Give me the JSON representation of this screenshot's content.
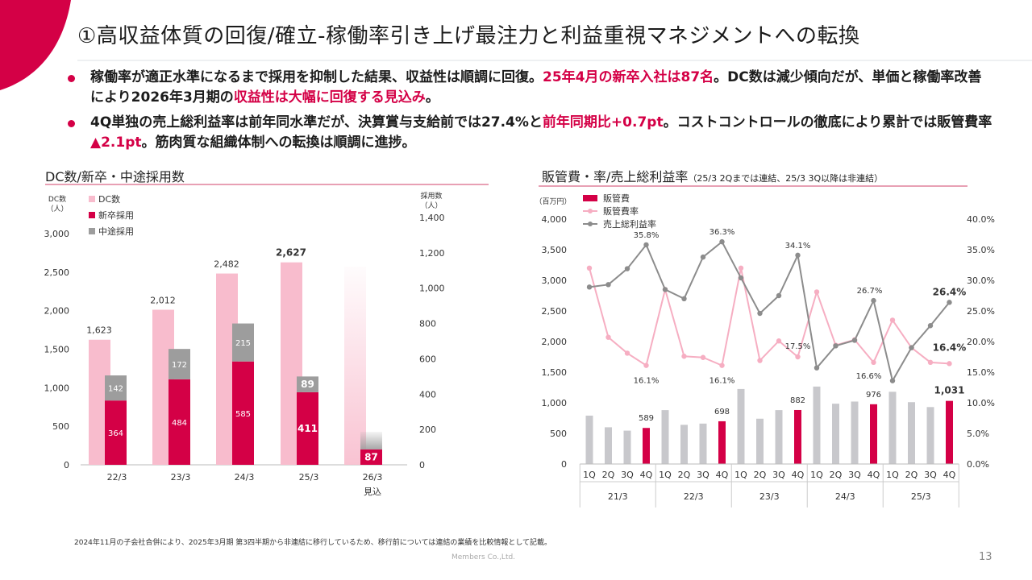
{
  "colors": {
    "accent": "#d40046",
    "dc_bar": "#f8bccd",
    "mid_bar": "#9d9d9d",
    "sga_bar_highlight": "#d40046",
    "sga_bar": "#c8c8cc",
    "sga_rate_line": "#f6aec2",
    "gross_margin_line": "#8c8c8c"
  },
  "header": {
    "title": "①高収益体質の回復/確立-稼働率引き上げ最注力と利益重視マネジメントへの転換"
  },
  "bullets": [
    {
      "parts": [
        {
          "text": "稼働率が適正水準になるまで採用を抑制した結果、収益性は順調に回復。",
          "hl": false
        },
        {
          "text": "25年4月の新卒入社は87名",
          "hl": true
        },
        {
          "text": "。DC数は減少傾向だが、単価と稼働率改善により2026年3月期の",
          "hl": false
        },
        {
          "text": "収益性は大幅に回復する見込み",
          "hl": true
        },
        {
          "text": "。",
          "hl": false
        }
      ]
    },
    {
      "parts": [
        {
          "text": "4Q単独の売上総利益率は前年同水準だが、決算賞与支給前では27.4%と",
          "hl": false
        },
        {
          "text": "前年同期比+0.7pt",
          "hl": true
        },
        {
          "text": "。コストコントロールの徹底により累計では販管費率",
          "hl": false
        },
        {
          "text": "▲2.1pt",
          "hl": true
        },
        {
          "text": "。筋肉質な組織体制への転換は順調に進捗。",
          "hl": false
        }
      ]
    }
  ],
  "left_section_title": "DC数/新卒・中途採用数",
  "right_section_title": {
    "main": "販管費・率/売上総利益率",
    "sub": "（25/3 2Qまでは連結、25/3 3Q以降は非連結）"
  },
  "chart_data": [
    {
      "type": "bar",
      "categories": [
        "22/3",
        "23/3",
        "24/3",
        "25/3",
        "26/3"
      ],
      "category_note": {
        "26/3": "見込"
      },
      "left_axis_label": [
        "DC数",
        "（人）"
      ],
      "right_axis_label": [
        "採用数",
        "（人）"
      ],
      "left_ticks": [
        "0",
        "500",
        "1,000",
        "1,500",
        "2,000",
        "2,500",
        "3,000"
      ],
      "right_ticks": [
        "0",
        "200",
        "400",
        "600",
        "800",
        "1,000",
        "1,200",
        "1,400"
      ],
      "ylim_left": [
        0,
        3000
      ],
      "ylim_right": [
        0,
        1400
      ],
      "series": [
        {
          "name": "DC数",
          "axis": "left",
          "values": [
            1623,
            2012,
            2482,
            2627,
            2570
          ],
          "labels": [
            "1,623",
            "2,012",
            "2,482",
            "2,627",
            ""
          ]
        },
        {
          "name": "新卒採用",
          "axis": "right",
          "stacked": true,
          "values": [
            364,
            484,
            585,
            411,
            87
          ],
          "labels": [
            "364",
            "484",
            "585",
            "411",
            "87"
          ]
        },
        {
          "name": "中途採用",
          "axis": "right",
          "stacked": true,
          "values": [
            142,
            172,
            215,
            89,
            100
          ],
          "labels": [
            "142",
            "172",
            "215",
            "89",
            ""
          ]
        }
      ],
      "legend": [
        "DC数",
        "新卒採用",
        "中途採用"
      ],
      "legend_position": "top-left"
    },
    {
      "type": "bar",
      "quarters": [
        "1Q",
        "2Q",
        "3Q",
        "4Q"
      ],
      "years": [
        "21/3",
        "22/3",
        "23/3",
        "24/3",
        "25/3"
      ],
      "left_axis_label": "（百万円）",
      "left_ticks": [
        "0",
        "500",
        "1,000",
        "1,500",
        "2,000",
        "2,500",
        "3,000",
        "3,500",
        "4,000"
      ],
      "right_ticks": [
        "0.0%",
        "5.0%",
        "10.0%",
        "15.0%",
        "20.0%",
        "25.0%",
        "30.0%",
        "35.0%",
        "40.0%"
      ],
      "ylim_left": [
        0,
        4000
      ],
      "ylim_right": [
        0,
        40
      ],
      "legend": [
        "販管費",
        "販管費率",
        "売上総利益率"
      ],
      "legend_position": "top-left",
      "series": [
        {
          "name": "販管費",
          "type": "bar",
          "axis": "left",
          "values": [
            790,
            600,
            545,
            589,
            880,
            640,
            660,
            698,
            1225,
            740,
            880,
            882,
            1265,
            985,
            1020,
            976,
            1180,
            1010,
            930,
            1031
          ]
        },
        {
          "name": "販管費率",
          "type": "line",
          "axis": "right",
          "values": [
            32.0,
            20.7,
            18.1,
            16.1,
            28.5,
            17.6,
            17.4,
            16.1,
            32.0,
            16.9,
            20.1,
            17.5,
            28.1,
            19.4,
            20.3,
            16.6,
            23.5,
            19.0,
            16.6,
            16.4
          ]
        },
        {
          "name": "売上総利益率",
          "type": "line",
          "axis": "right",
          "values": [
            28.9,
            29.3,
            31.9,
            35.8,
            28.5,
            27.0,
            33.8,
            36.3,
            30.4,
            24.6,
            27.5,
            34.1,
            15.7,
            19.3,
            20.2,
            26.7,
            13.6,
            19.0,
            22.6,
            26.4
          ]
        }
      ],
      "annotations": [
        {
          "text": "589"
        },
        {
          "text": "698"
        },
        {
          "text": "882"
        },
        {
          "text": "976"
        },
        {
          "text": "1,031"
        },
        {
          "text": "35.8%"
        },
        {
          "text": "36.3%"
        },
        {
          "text": "34.1%"
        },
        {
          "text": "26.7%"
        },
        {
          "text": "26.4%"
        },
        {
          "text": "16.1%"
        },
        {
          "text": "16.1%"
        },
        {
          "text": "17.5%"
        },
        {
          "text": "16.6%"
        },
        {
          "text": "16.4%"
        }
      ]
    }
  ],
  "footnote": "2024年11月の子会社合併により、2025年3月期 第3四半期から非連結に移行しているため、移行前については連結の業績を比較情報として記載。",
  "company": "Members Co.,Ltd.",
  "page_number": "13"
}
